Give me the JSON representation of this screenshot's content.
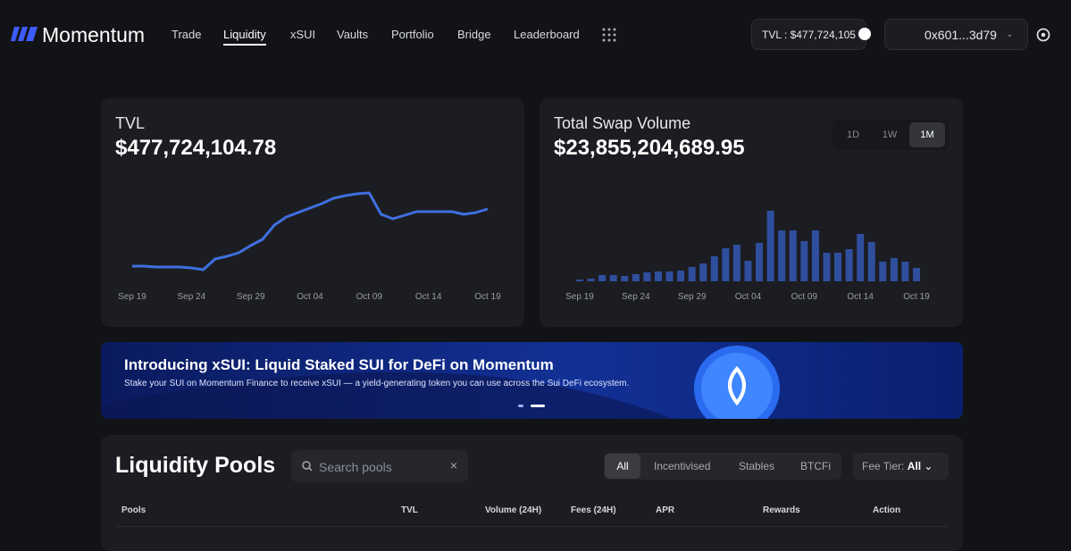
{
  "nav": {
    "brand": "Momentum",
    "links": [
      "Trade",
      "Liquidity",
      "xSUI",
      "Vaults",
      "Portfolio",
      "Bridge",
      "Leaderboard"
    ],
    "tvl": "TVL : $477,724,105",
    "wallet": "0x601...3d79"
  },
  "chart_data": [
    {
      "type": "line",
      "title": "TVL",
      "subtitle": "$477,724,104.78",
      "color": "#3f6fe0",
      "categories": [
        "Sep 19",
        null,
        null,
        null,
        null,
        "Sep 24",
        null,
        null,
        null,
        null,
        "Sep 29",
        null,
        null,
        null,
        null,
        "Oct 04",
        null,
        null,
        null,
        null,
        "Oct 09",
        null,
        null,
        null,
        null,
        "Oct 14",
        null,
        null,
        null,
        null,
        "Oct 19"
      ],
      "values": [
        22,
        22,
        21,
        21,
        21,
        20,
        18,
        30,
        33,
        37,
        45,
        52,
        68,
        77,
        82,
        87,
        92,
        98,
        101,
        103,
        104,
        80,
        75,
        79,
        83,
        83,
        83,
        83,
        80,
        82,
        86
      ],
      "ylim": [
        0,
        120
      ]
    },
    {
      "type": "bar",
      "title": "Total Swap Volume",
      "subtitle": "$23,855,204,689.95",
      "color": "#2f4f9e",
      "ranges": [
        "1D",
        "1W",
        "1M"
      ],
      "categories": [
        "Sep 19",
        null,
        null,
        null,
        null,
        "Sep 24",
        null,
        null,
        null,
        null,
        "Sep 29",
        null,
        null,
        null,
        null,
        "Oct 04",
        null,
        null,
        null,
        null,
        "Oct 09",
        null,
        null,
        null,
        null,
        "Oct 14",
        null,
        null,
        null,
        null,
        "Oct 19"
      ],
      "values": [
        2,
        3,
        7,
        7,
        6,
        8,
        10,
        11,
        11,
        12,
        16,
        20,
        28,
        37,
        41,
        23,
        43,
        79,
        57,
        57,
        45,
        57,
        32,
        32,
        36,
        53,
        44,
        22,
        26,
        22,
        15
      ],
      "ylim": [
        0,
        80
      ]
    }
  ],
  "banner": {
    "title": "Introducing xSUI: Liquid Staked SUI for DeFi on Momentum",
    "text": "Stake your SUI on Momentum Finance to receive xSUI — a yield-generating token you can use across the Sui DeFi ecosystem."
  },
  "pools": {
    "title": "Liquidity Pools",
    "search": "Search pools",
    "filters": [
      "All",
      "Incentivised",
      "Stables",
      "BTCFi"
    ],
    "fee_label": "Fee Tier:",
    "fee_value": "All",
    "columns": [
      "Pools",
      "TVL",
      "Volume (24H)",
      "Fees (24H)",
      "APR",
      "Rewards",
      "Action"
    ]
  }
}
